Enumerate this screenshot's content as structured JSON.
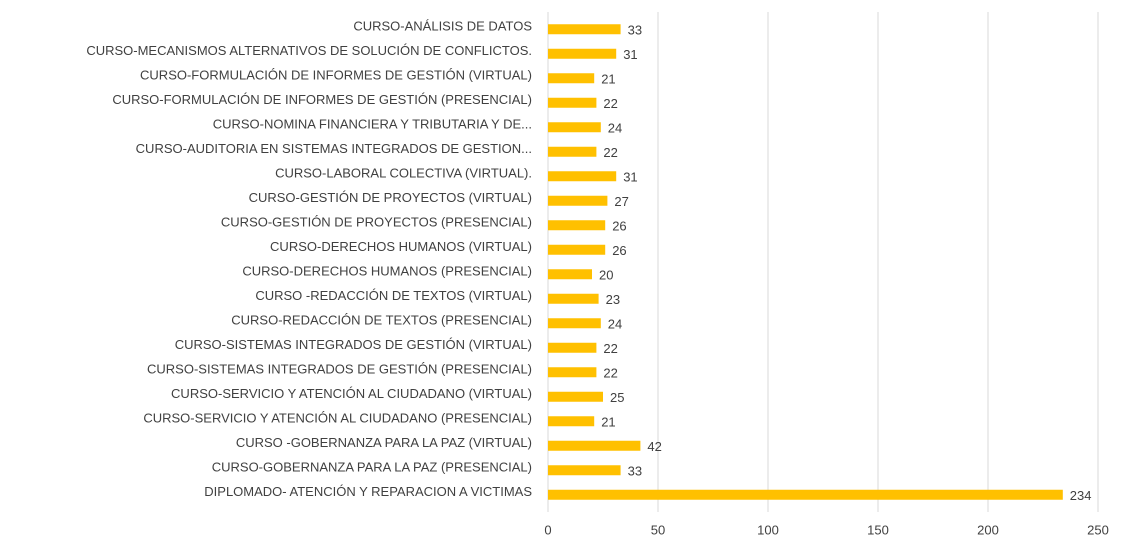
{
  "chart_data": {
    "type": "bar",
    "orientation": "horizontal",
    "categories": [
      "CURSO-ANÁLISIS DE DATOS",
      "CURSO-MECANISMOS ALTERNATIVOS DE SOLUCIÓN DE CONFLICTOS.",
      "CURSO-FORMULACIÓN DE INFORMES DE GESTIÓN (VIRTUAL)",
      "CURSO-FORMULACIÓN DE INFORMES DE GESTIÓN (PRESENCIAL)",
      "CURSO-NOMINA FINANCIERA Y TRIBUTARIA Y DE...",
      "CURSO-AUDITORIA EN SISTEMAS INTEGRADOS DE GESTION...",
      "CURSO-LABORAL COLECTIVA (VIRTUAL).",
      "CURSO-GESTIÓN DE PROYECTOS (VIRTUAL)",
      "CURSO-GESTIÓN DE PROYECTOS (PRESENCIAL)",
      "CURSO-DERECHOS HUMANOS (VIRTUAL)",
      "CURSO-DERECHOS HUMANOS (PRESENCIAL)",
      "CURSO -REDACCIÓN DE TEXTOS (VIRTUAL)",
      "CURSO-REDACCIÓN DE TEXTOS (PRESENCIAL)",
      "CURSO-SISTEMAS INTEGRADOS DE GESTIÓN (VIRTUAL)",
      "CURSO-SISTEMAS INTEGRADOS DE GESTIÓN (PRESENCIAL)",
      "CURSO-SERVICIO Y ATENCIÓN AL CIUDADANO (VIRTUAL)",
      "CURSO-SERVICIO Y ATENCIÓN AL CIUDADANO (PRESENCIAL)",
      "CURSO -GOBERNANZA PARA LA PAZ (VIRTUAL)",
      "CURSO-GOBERNANZA PARA LA PAZ (PRESENCIAL)",
      "DIPLOMADO- ATENCIÓN Y REPARACION A VICTIMAS"
    ],
    "values": [
      33,
      31,
      21,
      22,
      24,
      22,
      31,
      27,
      26,
      26,
      20,
      23,
      24,
      22,
      22,
      25,
      21,
      42,
      33,
      234
    ],
    "color": "#ffc000",
    "xlim": [
      0,
      250
    ],
    "xticks": [
      0,
      50,
      100,
      150,
      200,
      250
    ],
    "grid": true
  }
}
